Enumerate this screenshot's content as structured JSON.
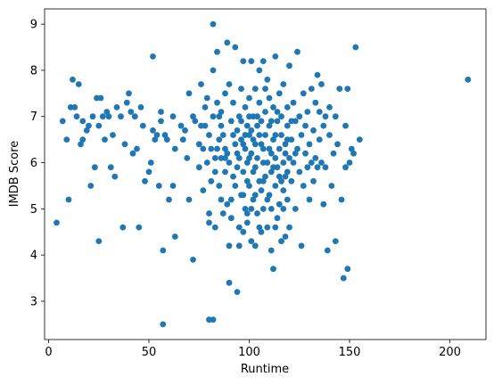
{
  "chart_data": {
    "type": "scatter",
    "title": "",
    "xlabel": "Runtime",
    "ylabel": "IMDB Score",
    "xlim": [
      -2,
      218
    ],
    "ylim": [
      2.17,
      9.33
    ],
    "xticks": [
      0,
      50,
      100,
      150,
      200
    ],
    "yticks": [
      3,
      4,
      5,
      6,
      7,
      8,
      9
    ],
    "grid": false,
    "legend": "none",
    "marker_color": "#1f77b4",
    "series": [
      {
        "points": [
          [
            4,
            4.7
          ],
          [
            7,
            6.9
          ],
          [
            9,
            6.5
          ],
          [
            10,
            5.2
          ],
          [
            11,
            7.2
          ],
          [
            12,
            7.8
          ],
          [
            13,
            7.2
          ],
          [
            14,
            7.0
          ],
          [
            15,
            7.7
          ],
          [
            16,
            6.4
          ],
          [
            17,
            6.5
          ],
          [
            17,
            6.9
          ],
          [
            19,
            6.7
          ],
          [
            20,
            6.8
          ],
          [
            21,
            5.5
          ],
          [
            22,
            7.0
          ],
          [
            23,
            5.9
          ],
          [
            24,
            7.4
          ],
          [
            25,
            4.3
          ],
          [
            25,
            6.8
          ],
          [
            26,
            7.4
          ],
          [
            27,
            7.0
          ],
          [
            28,
            6.5
          ],
          [
            29,
            7.1
          ],
          [
            30,
            7.0
          ],
          [
            31,
            5.9
          ],
          [
            32,
            6.6
          ],
          [
            33,
            5.7
          ],
          [
            34,
            7.2
          ],
          [
            36,
            7.0
          ],
          [
            37,
            4.6
          ],
          [
            38,
            6.4
          ],
          [
            39,
            7.3
          ],
          [
            40,
            7.5
          ],
          [
            41,
            7.1
          ],
          [
            42,
            6.2
          ],
          [
            43,
            7.0
          ],
          [
            44,
            6.3
          ],
          [
            45,
            4.6
          ],
          [
            46,
            7.2
          ],
          [
            47,
            6.8
          ],
          [
            48,
            5.6
          ],
          [
            50,
            5.8
          ],
          [
            51,
            6.0
          ],
          [
            52,
            6.7
          ],
          [
            52,
            8.3
          ],
          [
            53,
            6.5
          ],
          [
            54,
            6.6
          ],
          [
            55,
            5.5
          ],
          [
            56,
            7.1
          ],
          [
            56,
            6.9
          ],
          [
            57,
            4.1
          ],
          [
            57,
            2.5
          ],
          [
            58,
            6.6
          ],
          [
            59,
            6.5
          ],
          [
            60,
            5.2
          ],
          [
            62,
            5.5
          ],
          [
            62,
            7.0
          ],
          [
            63,
            4.4
          ],
          [
            63,
            6.3
          ],
          [
            66,
            6.8
          ],
          [
            67,
            6.5
          ],
          [
            68,
            6.7
          ],
          [
            69,
            6.1
          ],
          [
            70,
            7.5
          ],
          [
            70,
            5.2
          ],
          [
            72,
            3.9
          ],
          [
            72,
            7.0
          ],
          [
            73,
            6.9
          ],
          [
            75,
            5.9
          ],
          [
            75,
            6.4
          ],
          [
            76,
            7.7
          ],
          [
            77,
            5.4
          ],
          [
            78,
            6.8
          ],
          [
            79,
            7.4
          ],
          [
            80,
            2.6
          ],
          [
            80,
            4.9
          ],
          [
            80,
            4.7
          ],
          [
            81,
            5.6
          ],
          [
            81,
            6.3
          ],
          [
            82,
            2.6
          ],
          [
            82,
            8.0
          ],
          [
            82,
            9.0
          ],
          [
            83,
            6.1
          ],
          [
            83,
            4.6
          ],
          [
            84,
            7.3
          ],
          [
            84,
            8.4
          ],
          [
            85,
            6.5
          ],
          [
            85,
            5.5
          ],
          [
            86,
            5.2
          ],
          [
            86,
            6.8
          ],
          [
            86,
            7.1
          ],
          [
            87,
            6.6
          ],
          [
            87,
            4.9
          ],
          [
            88,
            5.8
          ],
          [
            88,
            7.5
          ],
          [
            88,
            6.3
          ],
          [
            89,
            6.2
          ],
          [
            89,
            8.6
          ],
          [
            89,
            5.1
          ],
          [
            90,
            4.2
          ],
          [
            90,
            3.4
          ],
          [
            90,
            7.7
          ],
          [
            90,
            6.0
          ],
          [
            91,
            6.9
          ],
          [
            91,
            4.8
          ],
          [
            92,
            5.7
          ],
          [
            92,
            7.3
          ],
          [
            93,
            6.4
          ],
          [
            93,
            8.5
          ],
          [
            94,
            3.2
          ],
          [
            94,
            5.9
          ],
          [
            94,
            6.7
          ],
          [
            95,
            4.6
          ],
          [
            95,
            7.0
          ],
          [
            95,
            6.1
          ],
          [
            96,
            5.3
          ],
          [
            96,
            7.6
          ],
          [
            96,
            6.5
          ],
          [
            97,
            4.5
          ],
          [
            97,
            8.2
          ],
          [
            97,
            5.8
          ],
          [
            98,
            6.3
          ],
          [
            98,
            7.2
          ],
          [
            98,
            5.0
          ],
          [
            99,
            6.8
          ],
          [
            99,
            4.7
          ],
          [
            99,
            6.0
          ],
          [
            100,
            7.4
          ],
          [
            100,
            5.5
          ],
          [
            100,
            6.6
          ],
          [
            101,
            4.3
          ],
          [
            101,
            8.2
          ],
          [
            101,
            6.2
          ],
          [
            102,
            7.0
          ],
          [
            102,
            5.2
          ],
          [
            102,
            6.5
          ],
          [
            103,
            4.2
          ],
          [
            103,
            7.6
          ],
          [
            103,
            5.9
          ],
          [
            104,
            6.8
          ],
          [
            104,
            4.9
          ],
          [
            104,
            6.1
          ],
          [
            105,
            8.0
          ],
          [
            105,
            5.6
          ],
          [
            105,
            7.3
          ],
          [
            106,
            6.4
          ],
          [
            106,
            4.5
          ],
          [
            106,
            6.9
          ],
          [
            107,
            8.2
          ],
          [
            107,
            5.0
          ],
          [
            107,
            6.3
          ],
          [
            108,
            7.1
          ],
          [
            108,
            5.7
          ],
          [
            108,
            6.6
          ],
          [
            109,
            4.6
          ],
          [
            109,
            7.8
          ],
          [
            109,
            6.0
          ],
          [
            110,
            6.8
          ],
          [
            110,
            5.3
          ],
          [
            110,
            7.4
          ],
          [
            111,
            6.2
          ],
          [
            111,
            4.1
          ],
          [
            111,
            5.8
          ],
          [
            112,
            3.7
          ],
          [
            112,
            7.2
          ],
          [
            112,
            6.5
          ],
          [
            113,
            5.5
          ],
          [
            113,
            8.3
          ],
          [
            113,
            6.1
          ],
          [
            114,
            6.9
          ],
          [
            114,
            4.8
          ],
          [
            114,
            5.9
          ],
          [
            115,
            7.5
          ],
          [
            115,
            6.3
          ],
          [
            115,
            5.1
          ],
          [
            116,
            4.3
          ],
          [
            116,
            7.0
          ],
          [
            116,
            6.6
          ],
          [
            117,
            5.4
          ],
          [
            117,
            6.0
          ],
          [
            117,
            7.7
          ],
          [
            118,
            6.4
          ],
          [
            118,
            4.4
          ],
          [
            118,
            5.7
          ],
          [
            119,
            7.2
          ],
          [
            119,
            6.8
          ],
          [
            119,
            5.2
          ],
          [
            120,
            6.1
          ],
          [
            120,
            8.1
          ],
          [
            120,
            4.6
          ],
          [
            121,
            6.5
          ],
          [
            121,
            5.6
          ],
          [
            122,
            7.3
          ],
          [
            122,
            6.0
          ],
          [
            123,
            5.0
          ],
          [
            123,
            6.9
          ],
          [
            124,
            8.4
          ],
          [
            124,
            6.3
          ],
          [
            125,
            5.8
          ],
          [
            125,
            7.0
          ],
          [
            126,
            4.2
          ],
          [
            126,
            6.6
          ],
          [
            127,
            5.5
          ],
          [
            127,
            7.5
          ],
          [
            128,
            6.2
          ],
          [
            128,
            6.8
          ],
          [
            129,
            5.9
          ],
          [
            129,
            7.1
          ],
          [
            130,
            6.4
          ],
          [
            130,
            5.2
          ],
          [
            131,
            7.6
          ],
          [
            131,
            6.0
          ],
          [
            132,
            6.7
          ],
          [
            132,
            5.6
          ],
          [
            133,
            7.3
          ],
          [
            133,
            6.1
          ],
          [
            134,
            7.9
          ],
          [
            134,
            5.9
          ],
          [
            135,
            7.1
          ],
          [
            135,
            6.5
          ],
          [
            136,
            7.7
          ],
          [
            136,
            6.0
          ],
          [
            137,
            6.8
          ],
          [
            137,
            5.1
          ],
          [
            138,
            7.0
          ],
          [
            138,
            5.9
          ],
          [
            139,
            4.1
          ],
          [
            140,
            7.2
          ],
          [
            140,
            6.6
          ],
          [
            141,
            5.5
          ],
          [
            142,
            6.2
          ],
          [
            143,
            4.3
          ],
          [
            143,
            7.0
          ],
          [
            144,
            6.4
          ],
          [
            145,
            7.6
          ],
          [
            146,
            5.2
          ],
          [
            147,
            3.5
          ],
          [
            148,
            5.9
          ],
          [
            148,
            6.8
          ],
          [
            149,
            3.7
          ],
          [
            149,
            7.6
          ],
          [
            150,
            6.0
          ],
          [
            151,
            6.3
          ],
          [
            152,
            6.2
          ],
          [
            153,
            8.5
          ],
          [
            155,
            6.5
          ],
          [
            209,
            7.8
          ],
          [
            88,
            6.1
          ],
          [
            92,
            6.6
          ],
          [
            94,
            6.2
          ],
          [
            96,
            6.9
          ],
          [
            97,
            6.4
          ],
          [
            98,
            6.6
          ],
          [
            99,
            5.6
          ],
          [
            100,
            6.1
          ],
          [
            100,
            7.0
          ],
          [
            101,
            6.7
          ],
          [
            102,
            5.8
          ],
          [
            103,
            6.4
          ],
          [
            104,
            7.0
          ],
          [
            105,
            6.6
          ],
          [
            106,
            5.4
          ],
          [
            107,
            6.0
          ],
          [
            108,
            7.6
          ],
          [
            110,
            6.3
          ],
          [
            111,
            6.9
          ],
          [
            112,
            5.9
          ],
          [
            113,
            6.6
          ],
          [
            114,
            7.1
          ],
          [
            116,
            5.6
          ],
          [
            118,
            6.2
          ],
          [
            119,
            6.5
          ],
          [
            121,
            6.9
          ],
          [
            123,
            6.2
          ],
          [
            86,
            6.1
          ],
          [
            85,
            7.0
          ],
          [
            84,
            6.3
          ],
          [
            83,
            5.8
          ],
          [
            82,
            7.0
          ],
          [
            80,
            6.6
          ],
          [
            79,
            6.0
          ],
          [
            78,
            7.2
          ],
          [
            77,
            6.3
          ],
          [
            76,
            6.8
          ],
          [
            91,
            5.2
          ],
          [
            93,
            5.5
          ],
          [
            95,
            4.2
          ],
          [
            97,
            5.3
          ],
          [
            99,
            4.9
          ],
          [
            101,
            5.0
          ],
          [
            103,
            5.3
          ],
          [
            105,
            4.6
          ],
          [
            107,
            5.6
          ],
          [
            109,
            5.2
          ],
          [
            111,
            5.0
          ],
          [
            113,
            4.6
          ],
          [
            115,
            5.7
          ],
          [
            117,
            5.0
          ],
          [
            119,
            5.8
          ]
        ]
      }
    ]
  }
}
